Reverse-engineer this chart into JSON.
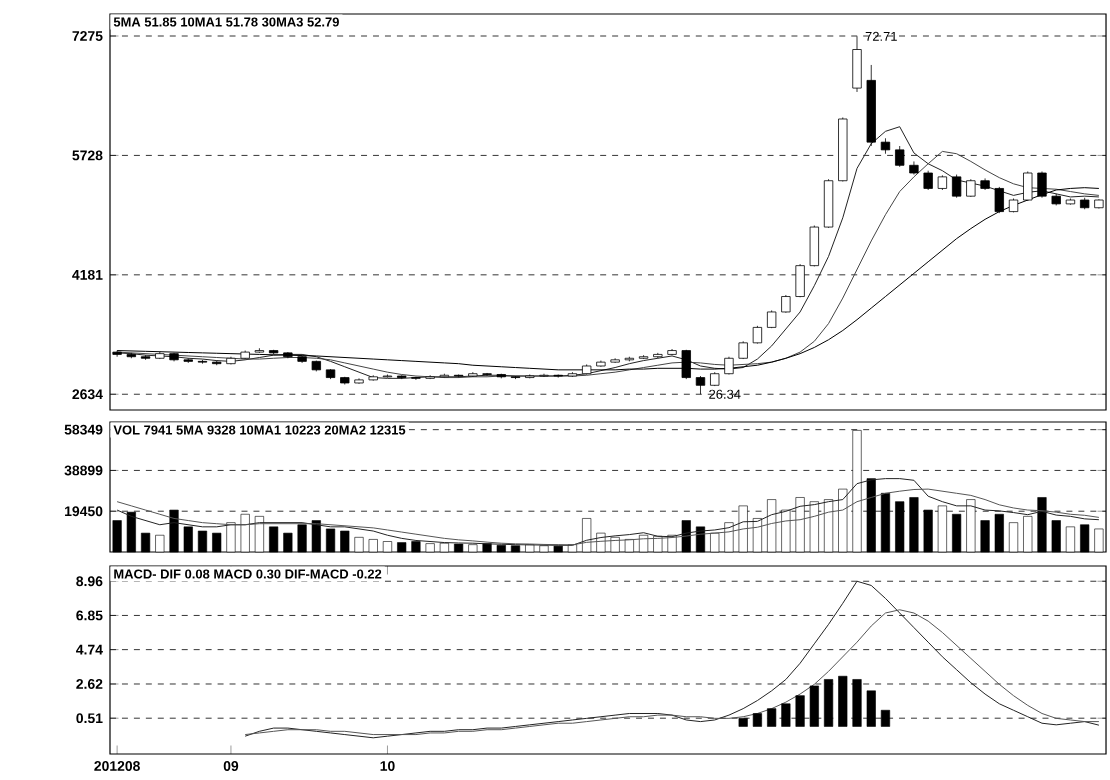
{
  "chart_data": [
    {
      "type": "candlestick",
      "title": "5MA 51.85  10MA1 51.78  30MA3 52.79",
      "categories": [
        null,
        null,
        null,
        null,
        null,
        null,
        null,
        null,
        null,
        null,
        null,
        null,
        null,
        null,
        null,
        null,
        null,
        null,
        null,
        null,
        null,
        null,
        null,
        null,
        null,
        null,
        null,
        null,
        null,
        null,
        null,
        null,
        null,
        null,
        null,
        null,
        null,
        null,
        null,
        null,
        null,
        null,
        null,
        null,
        null,
        null,
        null,
        null,
        null,
        null,
        null,
        null,
        null,
        null,
        null,
        null,
        null,
        null,
        null,
        null,
        null,
        null,
        null,
        null,
        null,
        null,
        null,
        null,
        null,
        null
      ],
      "ohlc": [
        [
          3180,
          3200,
          3120,
          3150
        ],
        [
          3150,
          3170,
          3100,
          3120
        ],
        [
          3120,
          3140,
          3080,
          3100
        ],
        [
          3100,
          3190,
          3090,
          3160
        ],
        [
          3160,
          3170,
          3060,
          3080
        ],
        [
          3080,
          3100,
          3040,
          3060
        ],
        [
          3060,
          3080,
          3030,
          3050
        ],
        [
          3050,
          3070,
          3010,
          3030
        ],
        [
          3030,
          3120,
          3020,
          3100
        ],
        [
          3100,
          3200,
          3090,
          3180
        ],
        [
          3180,
          3230,
          3170,
          3200
        ],
        [
          3200,
          3210,
          3150,
          3170
        ],
        [
          3170,
          3180,
          3100,
          3120
        ],
        [
          3120,
          3130,
          3040,
          3060
        ],
        [
          3060,
          3070,
          2930,
          2950
        ],
        [
          2950,
          2960,
          2830,
          2850
        ],
        [
          2850,
          2860,
          2760,
          2780
        ],
        [
          2780,
          2840,
          2770,
          2820
        ],
        [
          2820,
          2880,
          2810,
          2860
        ],
        [
          2860,
          2890,
          2850,
          2870
        ],
        [
          2870,
          2880,
          2830,
          2850
        ],
        [
          2850,
          2860,
          2820,
          2840
        ],
        [
          2840,
          2880,
          2830,
          2860
        ],
        [
          2860,
          2900,
          2850,
          2880
        ],
        [
          2880,
          2890,
          2850,
          2870
        ],
        [
          2870,
          2920,
          2860,
          2900
        ],
        [
          2900,
          2910,
          2870,
          2890
        ],
        [
          2890,
          2900,
          2840,
          2860
        ],
        [
          2860,
          2870,
          2830,
          2850
        ],
        [
          2850,
          2890,
          2840,
          2870
        ],
        [
          2870,
          2900,
          2860,
          2880
        ],
        [
          2880,
          2890,
          2850,
          2870
        ],
        [
          2870,
          2920,
          2860,
          2900
        ],
        [
          2900,
          3020,
          2890,
          3000
        ],
        [
          3000,
          3070,
          2990,
          3050
        ],
        [
          3050,
          3100,
          3040,
          3080
        ],
        [
          3080,
          3120,
          3060,
          3100
        ],
        [
          3100,
          3140,
          3090,
          3120
        ],
        [
          3120,
          3170,
          3100,
          3150
        ],
        [
          3150,
          3220,
          3140,
          3200
        ],
        [
          3200,
          3210,
          2830,
          2850
        ],
        [
          2850,
          2870,
          2634,
          2750
        ],
        [
          2750,
          2920,
          2740,
          2900
        ],
        [
          2900,
          3120,
          2890,
          3100
        ],
        [
          3100,
          3320,
          3090,
          3300
        ],
        [
          3300,
          3520,
          3290,
          3500
        ],
        [
          3500,
          3720,
          3490,
          3700
        ],
        [
          3700,
          3920,
          3690,
          3900
        ],
        [
          3900,
          4320,
          3890,
          4300
        ],
        [
          4300,
          4820,
          4290,
          4800
        ],
        [
          4800,
          5420,
          4790,
          5400
        ],
        [
          5400,
          6220,
          5390,
          6200
        ],
        [
          6600,
          7271,
          6550,
          7100
        ],
        [
          6700,
          6900,
          5850,
          5900
        ],
        [
          5900,
          5950,
          5750,
          5800
        ],
        [
          5800,
          5850,
          5580,
          5600
        ],
        [
          5600,
          5650,
          5480,
          5500
        ],
        [
          5500,
          5530,
          5280,
          5300
        ],
        [
          5300,
          5470,
          5280,
          5450
        ],
        [
          5450,
          5480,
          5180,
          5200
        ],
        [
          5200,
          5420,
          5190,
          5400
        ],
        [
          5400,
          5430,
          5280,
          5300
        ],
        [
          5300,
          5320,
          4980,
          5000
        ],
        [
          5000,
          5170,
          4990,
          5150
        ],
        [
          5150,
          5520,
          5140,
          5500
        ],
        [
          5500,
          5520,
          5180,
          5200
        ],
        [
          5200,
          5230,
          5080,
          5100
        ],
        [
          5100,
          5170,
          5090,
          5150
        ],
        [
          5150,
          5180,
          5030,
          5050
        ],
        [
          5050,
          5160,
          5040,
          5150
        ]
      ],
      "series": [
        {
          "type": "line",
          "color": "#222222",
          "values": [
            3170,
            3160,
            3140,
            3130,
            3120,
            3100,
            3090,
            3070,
            3060,
            3080,
            3110,
            3140,
            3150,
            3150,
            3120,
            3060,
            2990,
            2920,
            2850,
            2840,
            2840,
            2850,
            2860,
            2860,
            2860,
            2870,
            2880,
            2880,
            2870,
            2870,
            2870,
            2870,
            2880,
            2900,
            2940,
            2980,
            3030,
            3070,
            3100,
            3130,
            3080,
            3000,
            2970,
            2960,
            2980,
            3090,
            3260,
            3480,
            3700,
            4040,
            4420,
            4920,
            5560,
            5880,
            6040,
            6100,
            5760,
            5620,
            5530,
            5410,
            5370,
            5330,
            5270,
            5210,
            5250,
            5270,
            5230,
            5190,
            5200,
            5190
          ]
        },
        {
          "type": "line",
          "color": "#444444",
          "values": [
            3180,
            3170,
            3160,
            3150,
            3140,
            3130,
            3120,
            3110,
            3100,
            3090,
            3090,
            3100,
            3110,
            3110,
            3100,
            3080,
            3040,
            3000,
            2960,
            2920,
            2890,
            2870,
            2860,
            2850,
            2850,
            2860,
            2860,
            2870,
            2870,
            2870,
            2870,
            2870,
            2870,
            2880,
            2900,
            2920,
            2950,
            2980,
            3010,
            3040,
            3050,
            3040,
            3020,
            3010,
            3020,
            3030,
            3050,
            3100,
            3180,
            3320,
            3550,
            3880,
            4250,
            4620,
            4960,
            5260,
            5450,
            5620,
            5780,
            5750,
            5650,
            5540,
            5440,
            5360,
            5310,
            5300,
            5290,
            5260,
            5230,
            5210
          ]
        },
        {
          "type": "line",
          "color": "#000000",
          "values": [
            3200,
            3195,
            3190,
            3185,
            3180,
            3175,
            3170,
            3165,
            3160,
            3155,
            3150,
            3145,
            3140,
            3135,
            3130,
            3120,
            3110,
            3100,
            3090,
            3080,
            3070,
            3060,
            3050,
            3040,
            3030,
            3010,
            3000,
            2990,
            2980,
            2970,
            2960,
            2950,
            2950,
            2950,
            2950,
            2950,
            2960,
            2960,
            2970,
            2970,
            2970,
            2960,
            2960,
            2970,
            2990,
            3010,
            3050,
            3100,
            3160,
            3240,
            3340,
            3460,
            3600,
            3750,
            3900,
            4050,
            4200,
            4350,
            4500,
            4650,
            4780,
            4900,
            5000,
            5080,
            5150,
            5220,
            5280,
            5300,
            5310,
            5300
          ]
        }
      ],
      "ylim": [
        2430,
        7560
      ],
      "yticks": [
        2634,
        4181,
        5728,
        7275
      ],
      "grid": "y",
      "tick_labels": "y",
      "annotations": [
        "72.71",
        "26.34"
      ]
    },
    {
      "type": "bar",
      "title": "VOL 7941  5MA 9328  10MA1 10223  20MA2 12315",
      "categories": [
        null,
        null,
        null,
        null,
        null,
        null,
        null,
        null,
        null,
        null,
        null,
        null,
        null,
        null,
        null,
        null,
        null,
        null,
        null,
        null,
        null,
        null,
        null,
        null,
        null,
        null,
        null,
        null,
        null,
        null,
        null,
        null,
        null,
        null,
        null,
        null,
        null,
        null,
        null,
        null,
        null,
        null,
        null,
        null,
        null,
        null,
        null,
        null,
        null,
        null,
        null,
        null,
        null,
        null,
        null,
        null,
        null,
        null,
        null,
        null,
        null,
        null,
        null,
        null,
        null,
        null,
        null,
        null,
        null,
        null
      ],
      "series": [
        {
          "values": [
            15000,
            19000,
            9000,
            8000,
            20000,
            12000,
            10000,
            9000,
            14000,
            18000,
            17000,
            12000,
            9000,
            13000,
            15000,
            11000,
            10000,
            7000,
            6000,
            5000,
            4500,
            5000,
            4000,
            4200,
            3800,
            3500,
            4000,
            3200,
            3000,
            3500,
            3000,
            2800,
            3500,
            16000,
            9000,
            7000,
            6000,
            8000,
            7500,
            8000,
            15000,
            12000,
            9000,
            14000,
            22000,
            16000,
            25000,
            20000,
            26000,
            24000,
            25000,
            30000,
            58000,
            35000,
            28000,
            24000,
            26000,
            20000,
            22000,
            18000,
            25000,
            15000,
            18000,
            14000,
            17000,
            26000,
            15000,
            12000,
            13000,
            11000
          ],
          "colors": [
            "#000000",
            "#000000",
            "#000000",
            "#ffffff",
            "#000000",
            "#000000",
            "#000000",
            "#000000",
            "#ffffff",
            "#ffffff",
            "#ffffff",
            "#000000",
            "#000000",
            "#000000",
            "#000000",
            "#000000",
            "#000000",
            "#ffffff",
            "#ffffff",
            "#ffffff",
            "#000000",
            "#000000",
            "#ffffff",
            "#ffffff",
            "#000000",
            "#ffffff",
            "#000000",
            "#000000",
            "#000000",
            "#ffffff",
            "#ffffff",
            "#000000",
            "#ffffff",
            "#ffffff",
            "#ffffff",
            "#ffffff",
            "#ffffff",
            "#ffffff",
            "#ffffff",
            "#ffffff",
            "#000000",
            "#000000",
            "#ffffff",
            "#ffffff",
            "#ffffff",
            "#ffffff",
            "#ffffff",
            "#ffffff",
            "#ffffff",
            "#ffffff",
            "#ffffff",
            "#ffffff",
            "#ffffff",
            "#000000",
            "#000000",
            "#000000",
            "#000000",
            "#000000",
            "#ffffff",
            "#000000",
            "#ffffff",
            "#000000",
            "#000000",
            "#ffffff",
            "#ffffff",
            "#000000",
            "#000000",
            "#ffffff",
            "#000000",
            "#ffffff"
          ]
        },
        {
          "type": "line",
          "color": "#222222",
          "values": [
            20000,
            17000,
            15000,
            13000,
            14000,
            13000,
            12000,
            12000,
            13000,
            13000,
            14000,
            14000,
            14000,
            14000,
            13000,
            12000,
            12000,
            11000,
            10000,
            8000,
            6500,
            5500,
            5000,
            4500,
            4300,
            4200,
            3900,
            3700,
            3500,
            3400,
            3300,
            3200,
            3200,
            5600,
            6900,
            7700,
            8300,
            9200,
            7500,
            7300,
            9000,
            10000,
            10500,
            11600,
            14400,
            14600,
            17800,
            19400,
            21800,
            22600,
            24000,
            25000,
            32600,
            34400,
            35000,
            35000,
            34200,
            26600,
            24000,
            22000,
            22000,
            20000,
            19600,
            18800,
            17800,
            19400,
            17600,
            17000,
            15800,
            15400
          ]
        },
        {
          "type": "line",
          "color": "#555555",
          "values": [
            24000,
            22000,
            20000,
            18000,
            16000,
            15000,
            14000,
            13500,
            13000,
            13000,
            13500,
            13500,
            13500,
            13500,
            13500,
            13000,
            12500,
            12000,
            11500,
            10500,
            9500,
            8500,
            7500,
            6500,
            5800,
            5300,
            4700,
            4200,
            3900,
            3800,
            3600,
            3500,
            3400,
            4600,
            5100,
            5500,
            5800,
            6300,
            6500,
            6900,
            7600,
            8500,
            9000,
            9600,
            11000,
            11800,
            13600,
            14800,
            15400,
            17000,
            19000,
            20000,
            24000,
            26000,
            28000,
            29000,
            29800,
            30000,
            29000,
            28000,
            27000,
            25000,
            22500,
            21000,
            20000,
            19700,
            19000,
            18000,
            17500,
            16500
          ]
        }
      ],
      "ylim": [
        0,
        62000
      ],
      "yticks": [
        19450,
        38899,
        58349
      ],
      "grid": "y",
      "tick_labels": "y"
    },
    {
      "type": "line",
      "title": "MACD- DIF 0.08  MACD 0.30  DIF-MACD -0.22",
      "categories": [
        "201208",
        null,
        null,
        null,
        null,
        null,
        null,
        null,
        "09",
        null,
        null,
        null,
        null,
        null,
        null,
        null,
        null,
        null,
        null,
        "10",
        null,
        null,
        null,
        null,
        null,
        null,
        null,
        null,
        null,
        null,
        null,
        null,
        null,
        null,
        null,
        null,
        null,
        null,
        null,
        null,
        null,
        null,
        null,
        null,
        null,
        null,
        null,
        null,
        null,
        null,
        null,
        null,
        null,
        null,
        null,
        null,
        null,
        null,
        null,
        null,
        null,
        null,
        null,
        null,
        null,
        null,
        null,
        null,
        null,
        null
      ],
      "series": [
        {
          "color": "#222222",
          "values": [
            null,
            null,
            null,
            null,
            null,
            null,
            null,
            null,
            null,
            -0.6,
            -0.3,
            -0.1,
            -0.1,
            -0.2,
            -0.3,
            -0.4,
            -0.5,
            -0.6,
            -0.7,
            -0.6,
            -0.5,
            -0.4,
            -0.3,
            -0.3,
            -0.2,
            -0.2,
            -0.1,
            -0.1,
            0.0,
            0.1,
            0.2,
            0.3,
            0.4,
            0.5,
            0.6,
            0.7,
            0.8,
            0.8,
            0.8,
            0.7,
            0.4,
            0.3,
            0.4,
            0.7,
            1.1,
            1.6,
            2.2,
            2.9,
            3.9,
            5.1,
            6.3,
            7.6,
            8.96,
            8.7,
            7.9,
            7.0,
            6.1,
            5.2,
            4.3,
            3.5,
            2.7,
            2.0,
            1.4,
            1.0,
            0.6,
            0.2,
            0.1,
            0.2,
            0.3,
            0.08
          ]
        },
        {
          "color": "#555555",
          "values": [
            null,
            null,
            null,
            null,
            null,
            null,
            null,
            null,
            null,
            -0.5,
            -0.4,
            -0.3,
            -0.2,
            -0.2,
            -0.2,
            -0.3,
            -0.3,
            -0.4,
            -0.5,
            -0.5,
            -0.5,
            -0.5,
            -0.4,
            -0.4,
            -0.3,
            -0.3,
            -0.2,
            -0.2,
            -0.1,
            0.0,
            0.1,
            0.2,
            0.2,
            0.3,
            0.4,
            0.5,
            0.6,
            0.6,
            0.7,
            0.7,
            0.6,
            0.6,
            0.5,
            0.5,
            0.6,
            0.8,
            1.1,
            1.5,
            2.0,
            2.6,
            3.4,
            4.3,
            5.2,
            6.2,
            7.0,
            7.2,
            7.0,
            6.5,
            5.8,
            5.0,
            4.2,
            3.4,
            2.6,
            1.9,
            1.3,
            0.8,
            0.5,
            0.4,
            0.3,
            0.3
          ]
        },
        {
          "type": "bar",
          "color": "#000000",
          "values": [
            null,
            null,
            null,
            null,
            null,
            null,
            null,
            null,
            null,
            null,
            null,
            null,
            null,
            null,
            null,
            null,
            null,
            null,
            null,
            null,
            null,
            null,
            null,
            null,
            null,
            null,
            null,
            null,
            null,
            null,
            null,
            null,
            null,
            null,
            null,
            null,
            null,
            null,
            null,
            null,
            null,
            null,
            null,
            null,
            0.5,
            0.8,
            1.1,
            1.4,
            1.9,
            2.5,
            2.9,
            3.1,
            2.9,
            2.2,
            1.0,
            null,
            null,
            null,
            null,
            null,
            null,
            null,
            null,
            null,
            null,
            null,
            null,
            null,
            null,
            null
          ]
        }
      ],
      "ylim": [
        -1.7,
        9.9
      ],
      "yticks": [
        0.51,
        2.62,
        4.74,
        6.85,
        8.96
      ],
      "grid": "y"
    }
  ]
}
